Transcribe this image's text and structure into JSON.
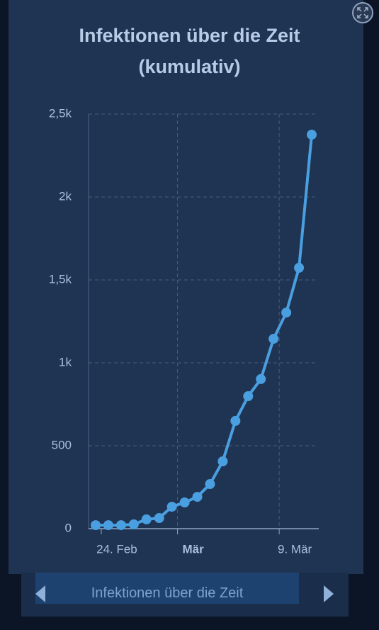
{
  "chart_data": {
    "type": "line",
    "title": "Infektionen über die Zeit (kumulativ)",
    "categories": [
      null,
      "24. Feb",
      null,
      null,
      null,
      null,
      null,
      "Mär",
      null,
      null,
      null,
      null,
      null,
      null,
      null,
      "9. Mär",
      null,
      null
    ],
    "series": [
      {
        "name": "Infektionen",
        "color": "#4a9fe0",
        "values": [
          21,
          21,
          21,
          26,
          56,
          64,
          132,
          158,
          192,
          269,
          406,
          650,
          799,
          902,
          1145,
          1303,
          1573,
          2376
        ]
      }
    ],
    "ylim": [
      0,
      2500
    ],
    "yticks": [
      0,
      500,
      {
        "value": 1000,
        "label": "1k"
      },
      {
        "value": 1500,
        "label": "1,5k"
      },
      {
        "value": 2000,
        "label": "2k"
      },
      {
        "value": 2500,
        "label": "2,5k"
      }
    ],
    "grid": true
  },
  "navigation": {
    "label": "Infektionen über die Zeit"
  }
}
